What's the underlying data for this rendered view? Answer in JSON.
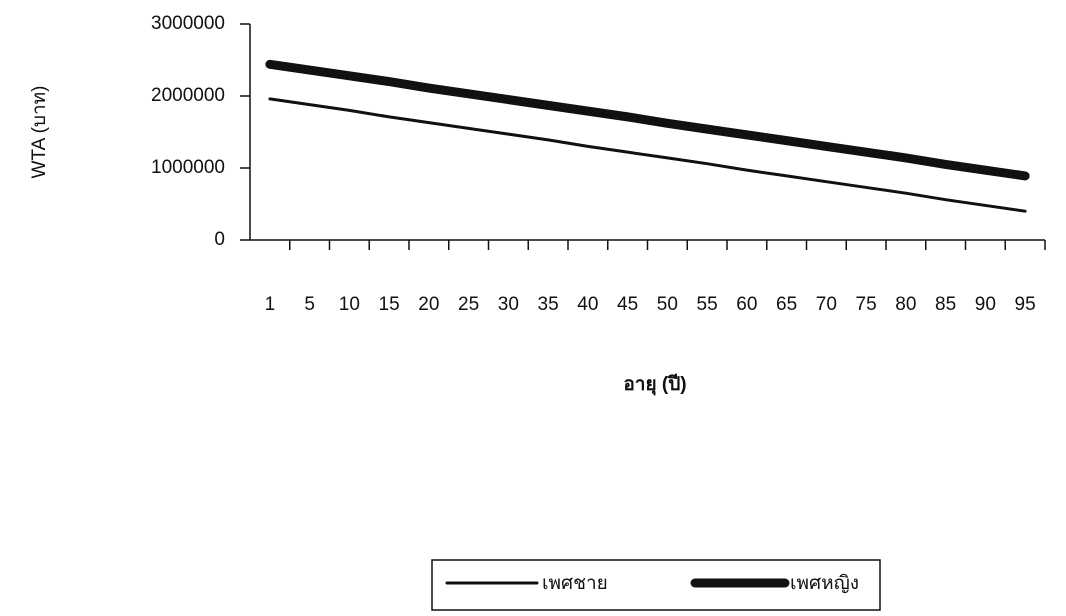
{
  "chart_data": {
    "type": "line",
    "y_label": "WTA (บาท)",
    "x_label": "อายุ (ปี)",
    "categories": [
      "1",
      "5",
      "10",
      "15",
      "20",
      "25",
      "30",
      "35",
      "40",
      "45",
      "50",
      "55",
      "60",
      "65",
      "70",
      "75",
      "80",
      "85",
      "90",
      "95"
    ],
    "series": [
      {
        "name": "เพศชาย",
        "color": "#111111",
        "width": 3,
        "values": [
          1960000,
          1880000,
          1800000,
          1710000,
          1630000,
          1550000,
          1470000,
          1390000,
          1300000,
          1220000,
          1140000,
          1060000,
          970000,
          890000,
          810000,
          730000,
          650000,
          560000,
          480000,
          400000
        ]
      },
      {
        "name": "เพศหญิง",
        "color": "#111111",
        "width": 9,
        "values": [
          2440000,
          2360000,
          2280000,
          2200000,
          2110000,
          2030000,
          1950000,
          1870000,
          1790000,
          1710000,
          1620000,
          1540000,
          1460000,
          1380000,
          1300000,
          1220000,
          1140000,
          1050000,
          970000,
          890000
        ]
      }
    ],
    "ylim": [
      0,
      3000000
    ],
    "yticks": [
      0,
      1000000,
      2000000,
      3000000
    ],
    "grid": false,
    "legend": "bottom"
  }
}
